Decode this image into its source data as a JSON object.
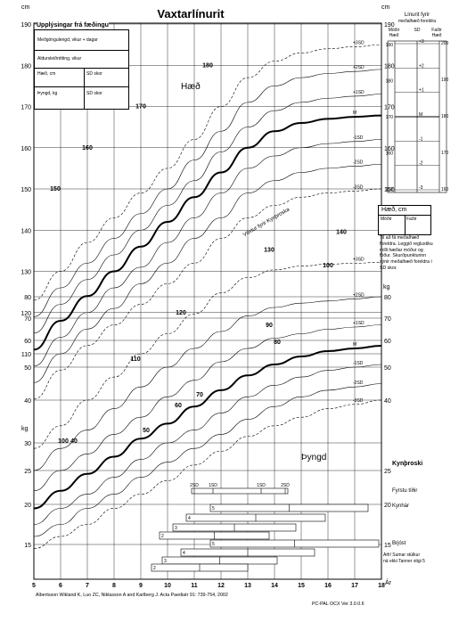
{
  "title": "Vaxtarlínurit",
  "units": {
    "cm_top": "cm",
    "cm_right_top": "cm",
    "kg_left": "kg",
    "kg_right": "kg"
  },
  "birth_info": {
    "heading": "Upplýsingar frá fæðingu",
    "gestation_label": "Meðgöngulengd, vikur + dagar",
    "age_correction_label": "Aldursleiðrétting, vikur",
    "height_label": "Hæð, cm",
    "height_sd_label": "SD skor",
    "weight_label": "Þyngd, kg",
    "weight_sd_label": "SD skor"
  },
  "parent_height_panel": {
    "title_line1": "Línurit fyrir",
    "title_line2": "meðalhæð foreldra",
    "col_mother": "Móðir Hæð",
    "col_sd": "SD",
    "col_father": "Faðir Hæð",
    "sd_labels": [
      "+3",
      "+2",
      "+1",
      "M",
      "-1",
      "-2",
      "-3"
    ],
    "left_ticks": [
      "190",
      "180",
      "170",
      "160",
      "150"
    ],
    "right_ticks": [
      "200",
      "190",
      "180",
      "170",
      "160"
    ]
  },
  "height_box": {
    "title": "Hæð, cm",
    "mother": "Móðir",
    "father": "Faðir",
    "note": "Til að fá meðalhæð foreldra. Leggið reglustiku milli hæðar móður og föður. Skurðpunkturinn sýnir meðalhæð foreldra í SD skor."
  },
  "labels": {
    "height_curve": "Hæð",
    "weight_curve": "Þyngd",
    "puberty_growth": "Vöxtur fyrir Kynþroska",
    "puberty": "Kynþroski",
    "first_period": "Fyrstu tíðir",
    "pubic_hair": "Kynhár",
    "breast": "Brjóst",
    "note_line1": "Ath! Sumar stúlkur",
    "note_line2": "ná ekki Tanner stigi 5",
    "x_unit": "Ár",
    "citation": "Albertsson Wikland K, Luo ZC, Niklasson A and Karlberg J.  Acta Paediatr 91: 739-754, 2002",
    "version": "PC-PAL OCX Ver 3.0.0.6"
  },
  "bars": {
    "menarche_scale": [
      "2SD",
      "1SD",
      "1SD",
      "2SD"
    ],
    "pubic_hair_stages": [
      "5",
      "4",
      "3",
      "2"
    ],
    "breast_stages": [
      "5",
      "4",
      "3",
      "2"
    ]
  },
  "chart_data": {
    "type": "line",
    "xlabel": "Ár",
    "xlim": [
      5,
      18
    ],
    "x_ticks": [
      "5",
      "6",
      "7",
      "8",
      "9",
      "10",
      "11",
      "12",
      "13",
      "14",
      "15",
      "16",
      "17",
      "18"
    ],
    "height_axis": {
      "unit": "cm",
      "ticks": [
        "110",
        "120",
        "130",
        "140",
        "150",
        "160",
        "170",
        "180",
        "190"
      ]
    },
    "weight_axis": {
      "unit": "kg",
      "ticks": [
        "15",
        "20",
        "25",
        "30",
        "40",
        "50",
        "60",
        "70",
        "80"
      ]
    },
    "height_series": [
      {
        "name": "+3SD",
        "x": [
          5,
          6,
          7,
          8,
          9,
          10,
          11,
          12,
          13,
          14,
          15,
          16,
          17,
          18
        ],
        "y": [
          123,
          130,
          137,
          143,
          149,
          155,
          162,
          170,
          177,
          181,
          183,
          184,
          184.5,
          185
        ]
      },
      {
        "name": "+2SD",
        "x": [
          5,
          6,
          7,
          8,
          9,
          10,
          11,
          12,
          13,
          14,
          15,
          16,
          17,
          18
        ],
        "y": [
          119,
          126,
          132,
          138,
          144,
          150,
          157,
          164,
          171,
          175,
          177,
          178,
          178.5,
          179
        ]
      },
      {
        "name": "+1SD",
        "x": [
          5,
          6,
          7,
          8,
          9,
          10,
          11,
          12,
          13,
          14,
          15,
          16,
          17,
          18
        ],
        "y": [
          115,
          122,
          128,
          134,
          140,
          146,
          152,
          159,
          165,
          169,
          171,
          172,
          172.5,
          173
        ]
      },
      {
        "name": "M",
        "x": [
          5,
          6,
          7,
          8,
          9,
          10,
          11,
          12,
          13,
          14,
          15,
          16,
          17,
          18
        ],
        "y": [
          111,
          118,
          124,
          130,
          136,
          142,
          148,
          154,
          160,
          164,
          166,
          167,
          167.5,
          167.8
        ]
      },
      {
        "name": "-1SD",
        "x": [
          5,
          6,
          7,
          8,
          9,
          10,
          11,
          12,
          13,
          14,
          15,
          16,
          17,
          18
        ],
        "y": [
          107,
          114,
          120,
          126,
          131,
          137,
          143,
          149,
          155,
          158,
          160,
          161,
          161.5,
          162
        ]
      },
      {
        "name": "-2SD",
        "x": [
          5,
          6,
          7,
          8,
          9,
          10,
          11,
          12,
          13,
          14,
          15,
          16,
          17,
          18
        ],
        "y": [
          103,
          110,
          116,
          121,
          127,
          132,
          138,
          143,
          149,
          152,
          154,
          155,
          155.5,
          156
        ]
      },
      {
        "name": "-3SD",
        "x": [
          5,
          6,
          7,
          8,
          9,
          10,
          11,
          12,
          13,
          14,
          15,
          16,
          17,
          18
        ],
        "y": [
          99,
          106,
          112,
          117,
          122,
          127,
          132,
          138,
          143,
          146,
          148,
          149,
          149.5,
          150
        ]
      }
    ],
    "weight_series": [
      {
        "name": "+3SD",
        "x": [
          5,
          6,
          7,
          8,
          9,
          10,
          11,
          12,
          13,
          14,
          15,
          16,
          17,
          18
        ],
        "y": [
          29,
          34,
          40,
          47,
          55,
          63,
          72,
          82,
          90,
          94,
          96,
          97,
          97.5,
          98
        ]
      },
      {
        "name": "+2SD",
        "x": [
          5,
          6,
          7,
          8,
          9,
          10,
          11,
          12,
          13,
          14,
          15,
          16,
          17,
          18
        ],
        "y": [
          25,
          29,
          33,
          38,
          44,
          50,
          57,
          64,
          71,
          75,
          77,
          78,
          79,
          80
        ]
      },
      {
        "name": "+1SD",
        "x": [
          5,
          6,
          7,
          8,
          9,
          10,
          11,
          12,
          13,
          14,
          15,
          16,
          17,
          18
        ],
        "y": [
          22,
          25,
          28,
          32,
          36,
          41,
          46,
          52,
          57,
          61,
          63,
          65,
          66,
          67
        ]
      },
      {
        "name": "M",
        "x": [
          5,
          6,
          7,
          8,
          9,
          10,
          11,
          12,
          13,
          14,
          15,
          16,
          17,
          18
        ],
        "y": [
          19.5,
          22,
          24.5,
          27.5,
          31,
          34.5,
          38.5,
          43,
          47.5,
          51,
          54,
          56,
          57,
          58
        ]
      },
      {
        "name": "-1SD",
        "x": [
          5,
          6,
          7,
          8,
          9,
          10,
          11,
          12,
          13,
          14,
          15,
          16,
          17,
          18
        ],
        "y": [
          17.5,
          19.5,
          21.5,
          24,
          27,
          30,
          33,
          37,
          41,
          44.5,
          47,
          49,
          50,
          51
        ]
      },
      {
        "name": "-2SD",
        "x": [
          5,
          6,
          7,
          8,
          9,
          10,
          11,
          12,
          13,
          14,
          15,
          16,
          17,
          18
        ],
        "y": [
          16,
          17.5,
          19.5,
          21.5,
          24,
          26.5,
          29,
          32,
          35.5,
          38.5,
          41,
          43,
          44,
          45
        ]
      },
      {
        "name": "-3SD",
        "x": [
          5,
          6,
          7,
          8,
          9,
          10,
          11,
          12,
          13,
          14,
          15,
          16,
          17,
          18
        ],
        "y": [
          14.5,
          16,
          17.5,
          19.5,
          21.5,
          23.5,
          26,
          28.5,
          31.5,
          34,
          36,
          38,
          39,
          40
        ]
      }
    ]
  }
}
